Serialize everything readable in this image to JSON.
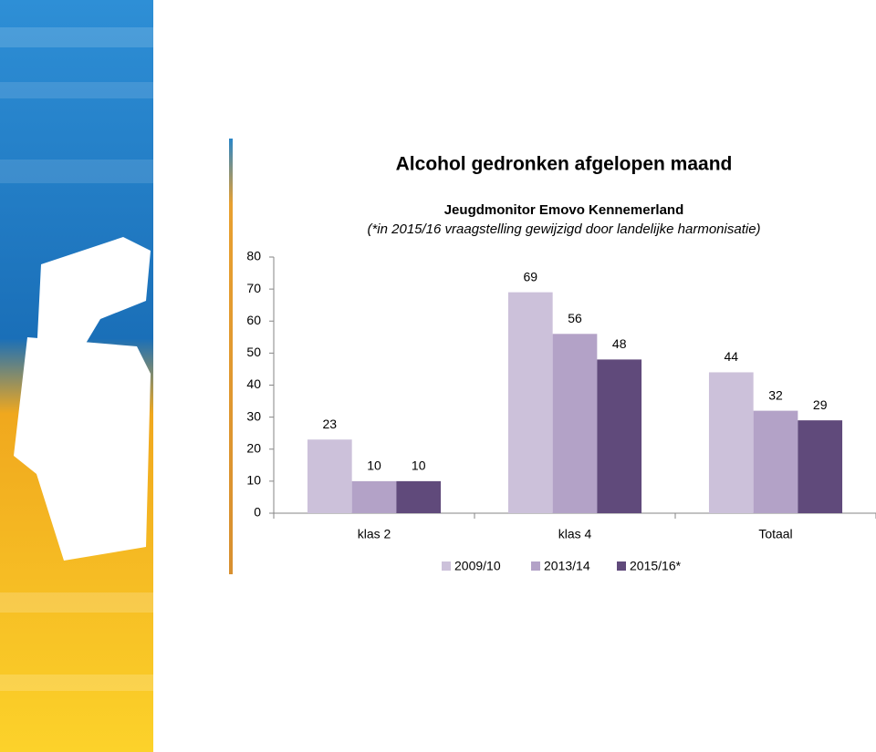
{
  "chart_data": {
    "type": "bar",
    "title": "Alcohol gedronken afgelopen maand",
    "subtitle": "Jeugdmonitor Emovo Kennemerland",
    "note": "(*in 2015/16 vraagstelling gewijzigd door landelijke harmonisatie)",
    "categories": [
      "klas 2",
      "klas 4",
      "Totaal"
    ],
    "series": [
      {
        "name": "2009/10",
        "color": "#ccc1da",
        "values": [
          23,
          69,
          44
        ]
      },
      {
        "name": "2013/14",
        "color": "#b3a2c7",
        "values": [
          10,
          56,
          32
        ]
      },
      {
        "name": "2015/16*",
        "color": "#604a7b",
        "values": [
          10,
          48,
          29
        ]
      }
    ],
    "ylim": [
      0,
      80
    ],
    "yticks": [
      0,
      10,
      20,
      30,
      40,
      50,
      60,
      70,
      80
    ],
    "grid": false,
    "data_labels": true,
    "legend": "bottom"
  }
}
